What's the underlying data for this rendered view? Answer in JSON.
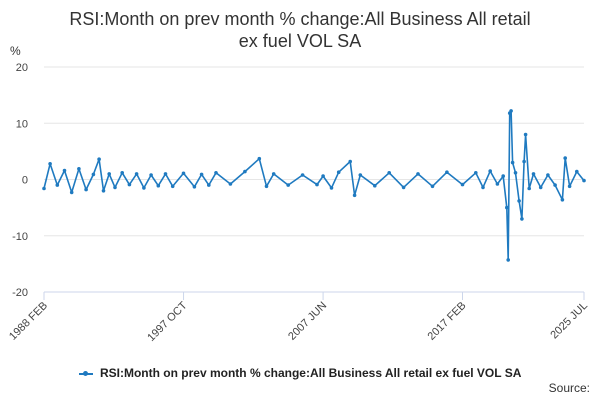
{
  "chart_data": {
    "type": "line",
    "title_lines": [
      "RSI:Month on prev month % change:All Business All retail",
      "ex fuel VOL SA"
    ],
    "y_unit": "%",
    "ylim": [
      -20,
      20
    ],
    "y_ticks": [
      20,
      10,
      0,
      -10,
      -20
    ],
    "x_ticks": [
      {
        "label": "1988 FEB",
        "year": 1988.08
      },
      {
        "label": "1997 OCT",
        "year": 1997.75
      },
      {
        "label": "2007 JUN",
        "year": 2007.42
      },
      {
        "label": "2017 FEB",
        "year": 2017.08
      },
      {
        "label": "2025 JUL",
        "year": 2025.5
      }
    ],
    "xlim_years": [
      1988.08,
      2025.5
    ],
    "grid": "horizontal",
    "legend_position": "bottom",
    "series": [
      {
        "name": "RSI:Month on prev month % change:All Business All retail ex fuel VOL SA",
        "color": "#1f7ac0",
        "points": [
          [
            1988.08,
            -1.6
          ],
          [
            1988.5,
            2.8
          ],
          [
            1989.0,
            -1.0
          ],
          [
            1989.5,
            1.6
          ],
          [
            1990.0,
            -2.3
          ],
          [
            1990.5,
            1.9
          ],
          [
            1991.0,
            -1.8
          ],
          [
            1991.5,
            0.9
          ],
          [
            1991.9,
            3.6
          ],
          [
            1992.2,
            -2.0
          ],
          [
            1992.6,
            1.0
          ],
          [
            1993.0,
            -1.4
          ],
          [
            1993.5,
            1.2
          ],
          [
            1994.0,
            -0.9
          ],
          [
            1994.5,
            1.0
          ],
          [
            1995.0,
            -1.5
          ],
          [
            1995.5,
            0.8
          ],
          [
            1996.0,
            -1.1
          ],
          [
            1996.5,
            1.0
          ],
          [
            1997.0,
            -1.2
          ],
          [
            1997.75,
            1.1
          ],
          [
            1998.5,
            -1.3
          ],
          [
            1999.0,
            0.9
          ],
          [
            1999.5,
            -1.0
          ],
          [
            2000.0,
            1.2
          ],
          [
            2001.0,
            -0.8
          ],
          [
            2002.0,
            1.4
          ],
          [
            2003.0,
            3.7
          ],
          [
            2003.5,
            -1.2
          ],
          [
            2004.0,
            1.0
          ],
          [
            2005.0,
            -1.0
          ],
          [
            2006.0,
            0.8
          ],
          [
            2007.0,
            -0.9
          ],
          [
            2007.42,
            0.6
          ],
          [
            2008.0,
            -1.5
          ],
          [
            2008.5,
            1.3
          ],
          [
            2009.3,
            3.2
          ],
          [
            2009.6,
            -2.8
          ],
          [
            2010.0,
            0.8
          ],
          [
            2011.0,
            -1.1
          ],
          [
            2012.0,
            1.2
          ],
          [
            2013.0,
            -1.4
          ],
          [
            2014.0,
            1.0
          ],
          [
            2015.0,
            -1.2
          ],
          [
            2016.0,
            1.3
          ],
          [
            2017.08,
            -0.9
          ],
          [
            2018.0,
            1.2
          ],
          [
            2018.5,
            -1.4
          ],
          [
            2019.0,
            1.5
          ],
          [
            2019.5,
            -0.8
          ],
          [
            2019.9,
            0.6
          ],
          [
            2020.15,
            -5.0
          ],
          [
            2020.25,
            -14.3
          ],
          [
            2020.35,
            11.8
          ],
          [
            2020.45,
            12.2
          ],
          [
            2020.55,
            3.0
          ],
          [
            2020.75,
            1.2
          ],
          [
            2021.0,
            -3.8
          ],
          [
            2021.2,
            -7.0
          ],
          [
            2021.35,
            3.2
          ],
          [
            2021.45,
            8.0
          ],
          [
            2021.7,
            -1.6
          ],
          [
            2022.0,
            1.0
          ],
          [
            2022.5,
            -1.4
          ],
          [
            2023.0,
            0.8
          ],
          [
            2023.5,
            -1.0
          ],
          [
            2024.0,
            -3.6
          ],
          [
            2024.2,
            3.8
          ],
          [
            2024.5,
            -1.2
          ],
          [
            2025.0,
            1.4
          ],
          [
            2025.5,
            -0.2
          ]
        ]
      }
    ]
  },
  "source_label": "Source:"
}
